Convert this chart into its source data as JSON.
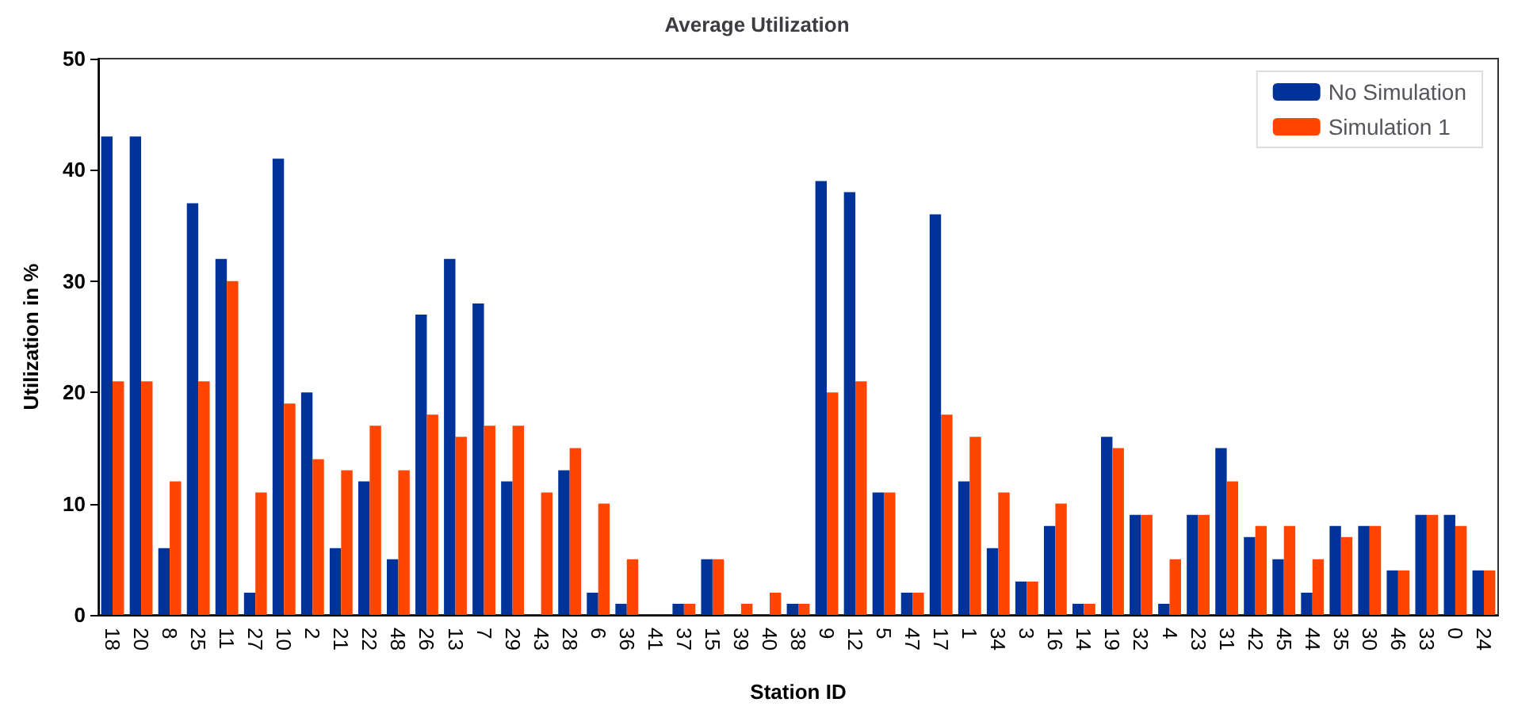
{
  "chart_data": {
    "type": "bar",
    "title": "Average Utilization",
    "xlabel": "Station ID",
    "ylabel": "Utilization in %",
    "categories": [
      "18",
      "20",
      "8",
      "25",
      "11",
      "27",
      "10",
      "2",
      "21",
      "22",
      "48",
      "26",
      "13",
      "7",
      "29",
      "43",
      "28",
      "6",
      "36",
      "41",
      "37",
      "15",
      "39",
      "40",
      "38",
      "9",
      "12",
      "5",
      "47",
      "17",
      "1",
      "34",
      "3",
      "16",
      "14",
      "19",
      "32",
      "4",
      "23",
      "31",
      "42",
      "45",
      "44",
      "35",
      "30",
      "46",
      "33",
      "0",
      "24"
    ],
    "series": [
      {
        "name": "No Simulation",
        "color": "#003399",
        "values": [
          43,
          43,
          6,
          37,
          32,
          2,
          41,
          20,
          6,
          12,
          5,
          27,
          32,
          28,
          12,
          0,
          13,
          2,
          1,
          0,
          1,
          5,
          0,
          0,
          1,
          39,
          38,
          11,
          2,
          36,
          12,
          6,
          3,
          8,
          1,
          16,
          9,
          1,
          9,
          15,
          7,
          5,
          2,
          8,
          8,
          4,
          9,
          9,
          4
        ]
      },
      {
        "name": "Simulation 1",
        "color": "#ff4500",
        "values": [
          21,
          21,
          12,
          21,
          30,
          11,
          19,
          14,
          13,
          17,
          13,
          18,
          16,
          17,
          17,
          11,
          15,
          10,
          5,
          0,
          1,
          5,
          1,
          2,
          1,
          20,
          21,
          11,
          2,
          18,
          16,
          11,
          3,
          10,
          1,
          15,
          9,
          5,
          9,
          12,
          8,
          8,
          5,
          7,
          8,
          4,
          9,
          8,
          4
        ]
      }
    ],
    "ylim": [
      0,
      50
    ],
    "yticks": [
      0,
      10,
      20,
      30,
      40,
      50
    ],
    "grid": false,
    "legend": "top right"
  }
}
